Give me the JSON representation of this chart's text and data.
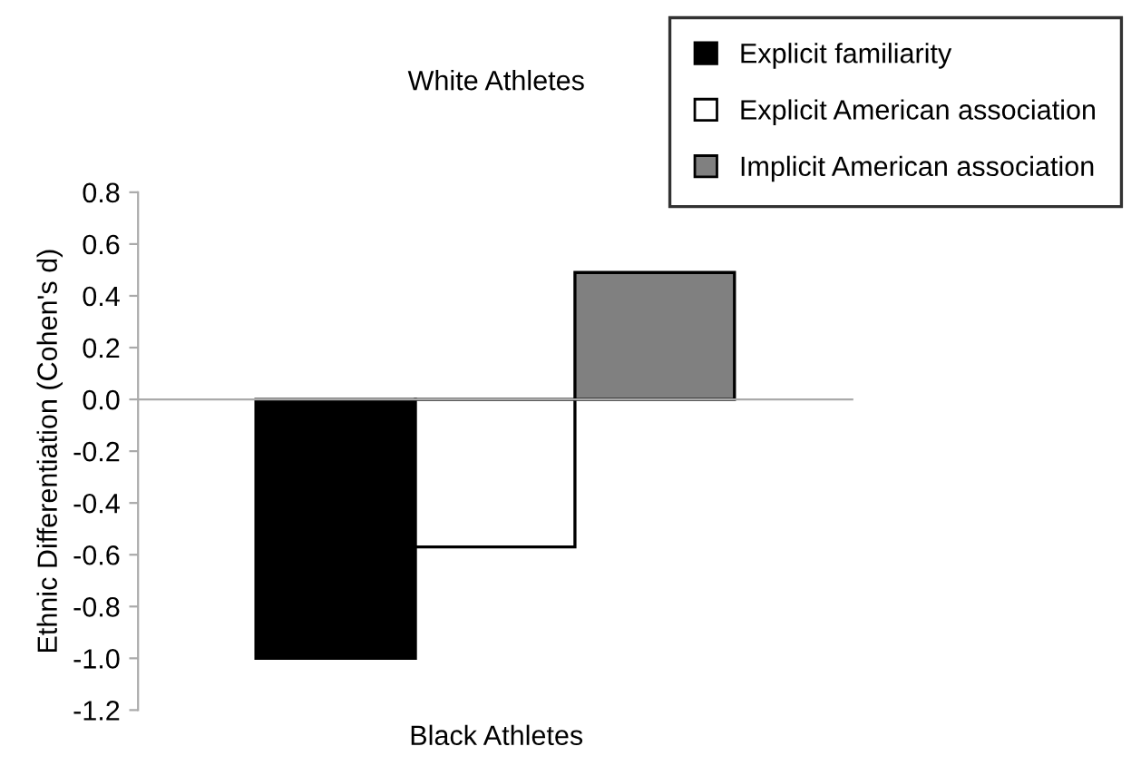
{
  "chart_data": {
    "type": "bar",
    "ylabel": "Ethnic Differentiation (Cohen's d)",
    "categories": [
      null
    ],
    "series": [
      {
        "name": "Explicit familiarity",
        "color": "#000000",
        "values": [
          -1.0
        ]
      },
      {
        "name": "Explicit American association",
        "color": "#ffffff",
        "values": [
          -0.57
        ]
      },
      {
        "name": "Implicit American association",
        "color": "#808080",
        "values": [
          0.49
        ]
      }
    ],
    "ylim": [
      -1.2,
      0.8
    ],
    "yticks": [
      {
        "value": -1.2,
        "label": "-1.2"
      },
      {
        "value": -1.0,
        "label": "-1.0"
      },
      {
        "value": -0.8,
        "label": "-0.8"
      },
      {
        "value": -0.6,
        "label": "-0.6"
      },
      {
        "value": -0.4,
        "label": "-0.4"
      },
      {
        "value": -0.2,
        "label": "-0.2"
      },
      {
        "value": 0.0,
        "label": "0.0"
      },
      {
        "value": 0.2,
        "label": "0.2"
      },
      {
        "value": 0.4,
        "label": "0.4"
      },
      {
        "value": 0.6,
        "label": "0.6"
      },
      {
        "value": 0.8,
        "label": "0.8"
      }
    ],
    "annotations": [
      "White Athletes",
      "Black Athletes"
    ],
    "legend": "top right"
  }
}
